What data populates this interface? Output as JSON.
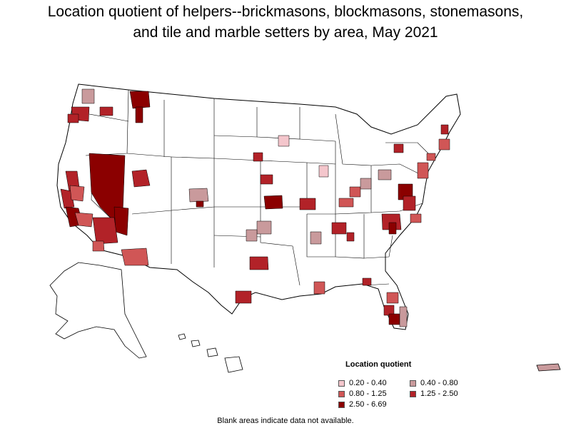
{
  "title_line1": "Location quotient of helpers--brickmasons, blockmasons, stonemasons,",
  "title_line2": "and tile and marble setters by area, May 2021",
  "legend": {
    "title": "Location quotient",
    "items": [
      {
        "label": "0.20 - 0.40",
        "color": "#f4c6cc"
      },
      {
        "label": "0.40 - 0.80",
        "color": "#c99a9c"
      },
      {
        "label": "0.80 - 1.25",
        "color": "#d05656"
      },
      {
        "label": "1.25 - 2.50",
        "color": "#b22228"
      },
      {
        "label": "2.50 - 6.69",
        "color": "#8b0000"
      }
    ]
  },
  "footnote": "Blank areas indicate data not available."
}
